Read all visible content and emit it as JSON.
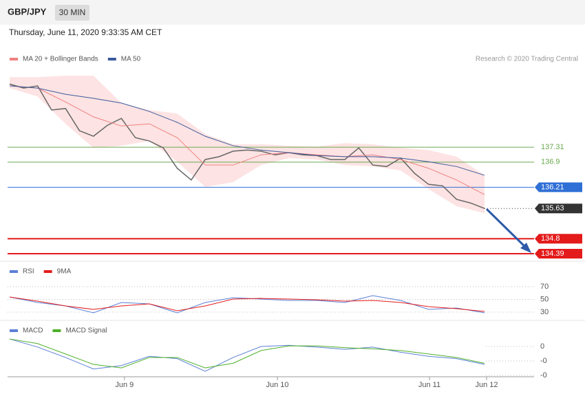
{
  "header": {
    "symbol": "GBP/JPY",
    "interval": "30 MIN",
    "timestamp": "Thursday, June 11, 2020 9:33:35 AM CET"
  },
  "chart_data": [
    {
      "type": "line",
      "credit": "Research © 2020 Trading Central",
      "xlim": [
        -0.15,
        37.55
      ],
      "ylim": [
        134.22,
        139.46
      ],
      "series": [
        {
          "color": "#666666",
          "x": [
            0,
            1,
            2,
            3,
            4,
            5,
            6,
            7,
            8,
            9,
            10,
            11,
            12,
            13,
            14,
            15,
            16,
            17,
            18,
            19,
            20,
            21,
            22,
            23,
            24,
            25,
            26,
            27,
            28,
            29,
            30,
            31,
            32,
            33,
            34
          ],
          "values": [
            139.04,
            138.93,
            138.99,
            138.33,
            138.37,
            137.76,
            137.61,
            137.91,
            138.1,
            137.57,
            137.48,
            137.29,
            136.73,
            136.41,
            136.97,
            137.05,
            137.2,
            137.23,
            137.2,
            137.1,
            137.16,
            137.1,
            137.08,
            136.97,
            136.97,
            137.29,
            136.82,
            136.78,
            137.01,
            136.59,
            136.29,
            136.25,
            135.88,
            135.78,
            135.63
          ]
        },
        {
          "name": "MA 20 + Bollinger Bands",
          "color": "#f08080",
          "band_color": "#fde3e3",
          "x": [
            0,
            2,
            4,
            6,
            8,
            10,
            12,
            14,
            16,
            18,
            20,
            22,
            24,
            26,
            28,
            30,
            32,
            34
          ],
          "values": [
            138.99,
            138.93,
            138.55,
            138.14,
            137.89,
            137.95,
            137.57,
            136.82,
            136.82,
            137.1,
            137.16,
            137.1,
            137.05,
            137.1,
            136.97,
            136.73,
            136.41,
            136.01
          ],
          "upper": [
            139.23,
            139.23,
            139.27,
            139.27,
            138.52,
            138.33,
            138.23,
            137.67,
            137.39,
            137.39,
            137.35,
            137.33,
            137.42,
            137.39,
            137.29,
            137.23,
            137.05,
            136.54
          ],
          "lower": [
            138.93,
            138.7,
            137.95,
            137.29,
            137.35,
            137.48,
            136.91,
            136.22,
            136.35,
            136.82,
            137.01,
            136.97,
            136.82,
            136.78,
            136.67,
            136.16,
            135.69,
            135.5
          ]
        },
        {
          "name": "MA 50",
          "color": "#3a5a9c",
          "x": [
            0,
            2,
            4,
            6,
            8,
            10,
            12,
            14,
            16,
            18,
            20,
            22,
            24,
            26,
            28,
            30,
            32,
            34
          ],
          "values": [
            138.99,
            138.93,
            138.76,
            138.65,
            138.52,
            138.29,
            137.99,
            137.61,
            137.35,
            137.23,
            137.16,
            137.08,
            137.05,
            137.05,
            137.01,
            136.91,
            136.78,
            136.54
          ]
        }
      ],
      "levels": [
        {
          "value": 137.31,
          "color": "#6aa84f",
          "boxed": false,
          "width": 1
        },
        {
          "value": 136.9,
          "color": "#6aa84f",
          "boxed": false,
          "width": 1
        },
        {
          "value": 136.21,
          "color": "#2f6fd6",
          "boxed": true,
          "width": 1
        },
        {
          "value": 135.63,
          "color": "#333333",
          "boxed": true,
          "width": 1,
          "dotted": true
        },
        {
          "value": 134.8,
          "color": "#e31b1b",
          "boxed": true,
          "width": 2
        },
        {
          "value": 134.39,
          "color": "#e31b1b",
          "boxed": true,
          "width": 2
        }
      ]
    },
    {
      "type": "line",
      "xlim": [
        -0.15,
        37.55
      ],
      "ylim": [
        21.35,
        104.6
      ],
      "yticks": [
        70,
        50,
        30
      ],
      "grid": true,
      "series": [
        {
          "name": "RSI",
          "color": "#5b7fd6",
          "x": [
            0,
            2,
            4,
            6,
            8,
            10,
            12,
            14,
            16,
            18,
            20,
            22,
            24,
            26,
            28,
            30,
            32,
            34
          ],
          "values": [
            53.8,
            45.1,
            39.7,
            28.9,
            45.1,
            43.0,
            28.9,
            45.1,
            52.7,
            50.5,
            48.4,
            48.4,
            45.1,
            55.9,
            48.4,
            34.3,
            36.5,
            28.9
          ]
        },
        {
          "name": "9MA",
          "color": "#e31b1b",
          "x": [
            0,
            2,
            4,
            6,
            8,
            10,
            12,
            14,
            16,
            18,
            20,
            22,
            24,
            26,
            28,
            30,
            32,
            34
          ],
          "values": [
            53.8,
            47.3,
            39.7,
            34.3,
            39.7,
            43.0,
            32.2,
            39.7,
            50.5,
            51.6,
            50.5,
            49.5,
            47.3,
            48.4,
            45.1,
            38.6,
            35.4,
            31.1
          ]
        }
      ]
    },
    {
      "type": "line",
      "xlim": [
        -0.15,
        37.55
      ],
      "ylim": [
        -0.524,
        0.345
      ],
      "yticks": [
        0,
        {
          "value": -0.25,
          "label": "-0"
        },
        {
          "value": -0.5,
          "label": "-0"
        }
      ],
      "xticks": [
        {
          "value": 8.22,
          "label": "Jun 9"
        },
        {
          "value": 19.17,
          "label": "Jun 10"
        },
        {
          "value": 30.06,
          "label": "Jun 11"
        },
        {
          "value": 34.15,
          "label": "Jun 12"
        }
      ],
      "series": [
        {
          "name": "MACD",
          "color": "#5b7fd6",
          "x": [
            0,
            2,
            4,
            6,
            8,
            10,
            12,
            14,
            16,
            18,
            20,
            22,
            24,
            26,
            28,
            30,
            32,
            34
          ],
          "values": [
            0.13,
            -0.01,
            -0.19,
            -0.39,
            -0.33,
            -0.17,
            -0.21,
            -0.43,
            -0.19,
            0.0,
            0.02,
            -0.01,
            -0.05,
            -0.01,
            -0.1,
            -0.17,
            -0.21,
            -0.31
          ]
        },
        {
          "name": "MACD Signal",
          "color": "#4caf26",
          "x": [
            0,
            2,
            4,
            6,
            8,
            10,
            12,
            14,
            16,
            18,
            20,
            22,
            24,
            26,
            28,
            30,
            32,
            34
          ],
          "values": [
            0.13,
            0.05,
            -0.13,
            -0.31,
            -0.37,
            -0.19,
            -0.19,
            -0.37,
            -0.29,
            -0.07,
            0.01,
            0.01,
            -0.02,
            -0.04,
            -0.07,
            -0.13,
            -0.19,
            -0.29
          ]
        }
      ]
    }
  ]
}
